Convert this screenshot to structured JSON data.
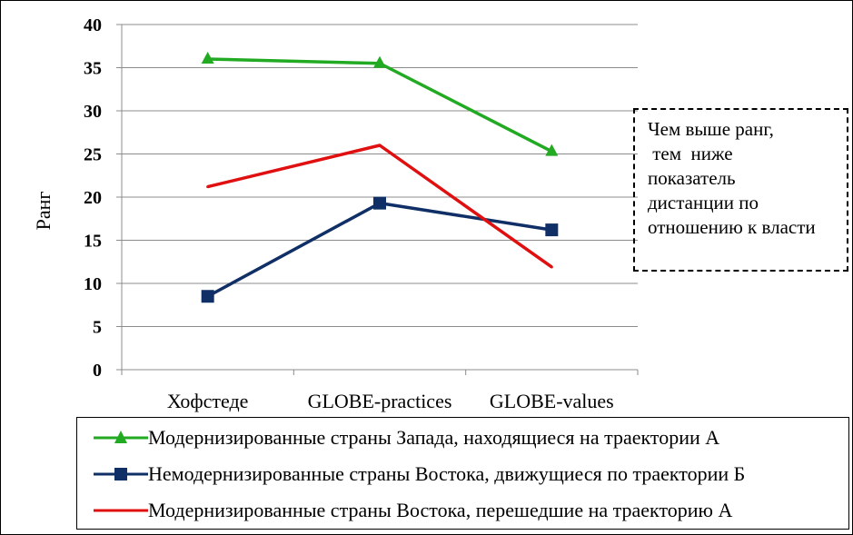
{
  "chart_data": {
    "type": "line",
    "categories": [
      "Хофстеде",
      "GLOBE-practices",
      "GLOBE-values"
    ],
    "ylabel": "Ранг",
    "ylim": [
      0,
      40
    ],
    "yticks": [
      "0",
      "5",
      "10",
      "15",
      "20",
      "25",
      "30",
      "35",
      "40"
    ],
    "grid": true,
    "legend_position": "bottom",
    "series": [
      {
        "name": "Модернизированные страны Запада, находящиеся на траектории А",
        "values": [
          36,
          35.5,
          25.3
        ],
        "color": "#22aa22",
        "marker": "triangle"
      },
      {
        "name": "Немодернизированные страны Востока, движущиеся по траектории Б",
        "values": [
          8.5,
          19.3,
          16.2
        ],
        "color": "#0f2f66",
        "marker": "square"
      },
      {
        "name": "Модернизированные страны Востока, перешедшие на траекторию А",
        "values": [
          21.2,
          26,
          11.9
        ],
        "color": "#e01010",
        "marker": "none"
      }
    ],
    "annotation": "Чем выше ранг,\n тем  ниже\nпоказатель\nдистанции по\nотношению к власти"
  }
}
